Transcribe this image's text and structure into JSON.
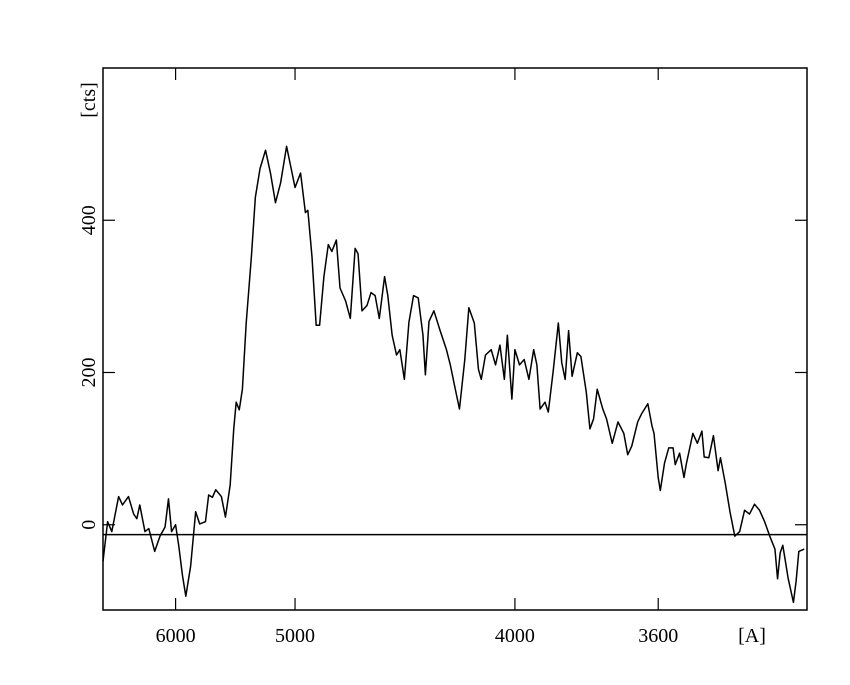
{
  "chart_data": {
    "type": "line",
    "xlabel": "[A]",
    "ylabel": "[cts]",
    "xscale": "inverse-square",
    "xlim": [
      7010,
      3290
    ],
    "ylim": [
      -112,
      600
    ],
    "xticks": [
      6000,
      5000,
      4000,
      3600
    ],
    "yticks": [
      0,
      200,
      400
    ],
    "reference_line": -13,
    "color": "#000000",
    "x": [
      7010,
      6930,
      6860,
      6750,
      6690,
      6600,
      6525,
      6480,
      6440,
      6370,
      6320,
      6245,
      6180,
      6120,
      6080,
      6045,
      6000,
      5965,
      5925,
      5890,
      5840,
      5790,
      5750,
      5695,
      5665,
      5630,
      5600,
      5550,
      5515,
      5475,
      5445,
      5425,
      5400,
      5375,
      5345,
      5305,
      5275,
      5240,
      5200,
      5165,
      5130,
      5095,
      5055,
      5025,
      5000,
      4965,
      4935,
      4920,
      4895,
      4870,
      4850,
      4825,
      4800,
      4780,
      4755,
      4735,
      4705,
      4680,
      4655,
      4640,
      4620,
      4595,
      4575,
      4555,
      4535,
      4510,
      4495,
      4475,
      4455,
      4440,
      4420,
      4400,
      4380,
      4360,
      4340,
      4330,
      4315,
      4295,
      4270,
      4245,
      4230,
      4215,
      4195,
      4175,
      4160,
      4140,
      4125,
      4115,
      4100,
      4080,
      4065,
      4050,
      4035,
      4025,
      4010,
      4000,
      3985,
      3970,
      3955,
      3940,
      3930,
      3920,
      3905,
      3895,
      3880,
      3865,
      3855,
      3845,
      3835,
      3825,
      3810,
      3800,
      3785,
      3775,
      3765,
      3755,
      3740,
      3730,
      3715,
      3700,
      3685,
      3675,
      3665,
      3650,
      3640,
      3625,
      3615,
      3610,
      3600,
      3595,
      3585,
      3575,
      3565,
      3560,
      3550,
      3540,
      3535,
      3520,
      3510,
      3500,
      3495,
      3485,
      3475,
      3465,
      3460,
      3450,
      3440,
      3430,
      3420,
      3410,
      3400,
      3390,
      3380,
      3370,
      3360,
      3350,
      3345,
      3340,
      3335,
      3325,
      3315,
      3310,
      3305,
      3295
    ],
    "values": [
      -48,
      4,
      -9,
      37,
      26,
      37,
      14,
      8,
      26,
      -9,
      -5,
      -35,
      -15,
      -3,
      34,
      -9,
      0,
      -28,
      -67,
      -94,
      -54,
      17,
      1,
      4,
      39,
      36,
      46,
      37,
      10,
      52,
      126,
      161,
      151,
      178,
      265,
      352,
      430,
      468,
      492,
      462,
      423,
      449,
      497,
      468,
      443,
      462,
      410,
      413,
      352,
      262,
      262,
      326,
      368,
      359,
      374,
      311,
      294,
      271,
      363,
      356,
      281,
      288,
      305,
      301,
      271,
      326,
      301,
      249,
      223,
      230,
      191,
      266,
      301,
      298,
      249,
      197,
      267,
      281,
      255,
      230,
      210,
      185,
      152,
      217,
      285,
      265,
      204,
      191,
      223,
      230,
      210,
      236,
      191,
      249,
      165,
      230,
      210,
      217,
      191,
      230,
      210,
      152,
      161,
      148,
      203,
      265,
      213,
      191,
      255,
      195,
      226,
      221,
      174,
      126,
      139,
      178,
      152,
      139,
      107,
      135,
      120,
      92,
      103,
      135,
      146,
      159,
      130,
      120,
      62,
      45,
      81,
      101,
      101,
      79,
      94,
      62,
      79,
      120,
      107,
      123,
      89,
      88,
      117,
      71,
      88,
      55,
      17,
      -15,
      -9,
      19,
      14,
      27,
      19,
      4,
      -15,
      -32,
      -71,
      -37,
      -27,
      -70,
      -102,
      -74,
      -35,
      -32
    ]
  }
}
